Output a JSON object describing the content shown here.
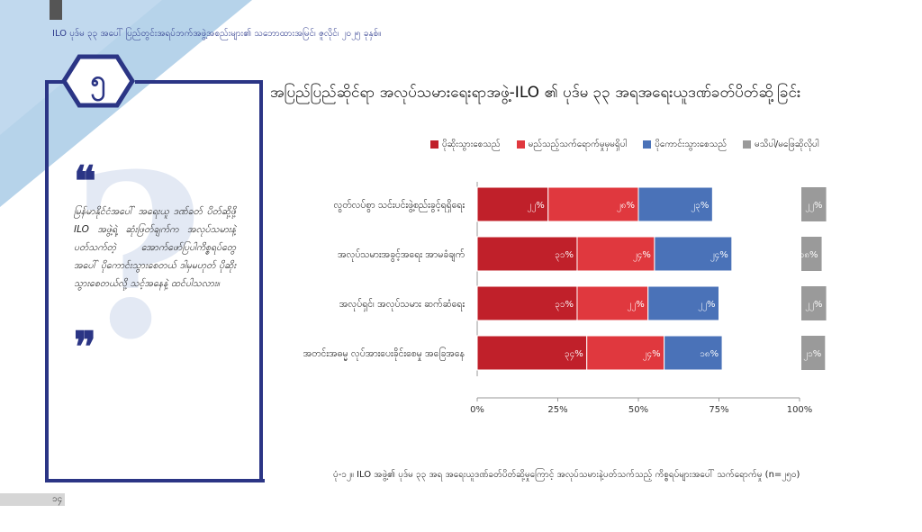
{
  "header": {
    "running_title": "ILO ပုဒ်မ ၃၃ အပေါ် ပြည်တွင်းအရပ်ဘက်အဖွဲ့အစည်းများ၏ သဘောထားအမြင်၊ ဇူလိုင်၊ ၂၀၂၅ ခုနှစ်။"
  },
  "section": {
    "number": "၅"
  },
  "page": {
    "number": "၁၄"
  },
  "quote": {
    "open_mark": "❝",
    "close_mark": "❞",
    "text": "မြန်မာနိုင်ငံအပေါ် အရေးယူ ဒဏ်ခတ် ပိတ်ဆို့ဖို့ ILO အဖွဲ့ရဲ့ ဆုံးဖြတ်ချက်က အလုပ်သမားနဲ့ပတ်သက်တဲ့ အောက်ဖော်ပြပါကိစ္စရပ်တွေအပေါ် ပိုကောင်းသွားစေတယ် ဒါမှမဟုတ် ပိုဆိုးသွားစေတယ်လို့ သင့်အနေနဲ့ ထင်ပါသလား။"
  },
  "caption": "ပုံ-၁၂။ ILO အဖွဲ့၏ ပုဒ်မ ၃၃ အရ အရေးယူဒဏ်ခတ်ပိတ်ဆို့မှုကြောင့် အလုပ်သမားနဲ့ပတ်သက်သည့် ကိစ္စရပ်များအပေါ် သက်ရောက်မှု (n=၂၅၀)",
  "colors": {
    "worse": "#c0202a",
    "no_effect": "#e0383e",
    "better": "#4a72b8",
    "unknown": "#9a9a9a",
    "navy": "#2b3585",
    "light_blue": "#a9cbe6"
  },
  "chart_data": {
    "type": "bar",
    "orientation": "horizontal",
    "stacked": true,
    "title": "အပြည်ပြည်ဆိုင်ရာ အလုပ်သမားရေးရာအဖွဲ့-ILO ၏ ပုဒ်မ ၃၃ အရအရေးယူဒဏ်ခတ်ပိတ်ဆို့ခြင်း",
    "categories": [
      "လွတ်လပ်စွာ သင်းပင်းဖွဲ့စည်းခွင့်ရရှိရေး",
      "အလုပ်သမားအခွင့်အရေး အာမခံချက်",
      "အလုပ်ရှင်၊ အလုပ်သမား ဆက်ဆံရေး",
      "အတင်းအဓမ္မ လုပ်အားပေးခိုင်းစေမှု အခြေအနေ"
    ],
    "series": [
      {
        "name": "ပိုဆိုးသွားစေသည်",
        "values": [
          22,
          31,
          31,
          34
        ],
        "labels": [
          "၂၂%",
          "၃၁%",
          "၃၁%",
          "၃၄%"
        ]
      },
      {
        "name": "မည်သည့်သက်ရောက်မှုမှမရှိပါ",
        "values": [
          28,
          24,
          22,
          24
        ],
        "labels": [
          "၂၈%",
          "၂၄%",
          "၂၂%",
          "၂၄%"
        ]
      },
      {
        "name": "ပိုကောင်းသွားစေသည်",
        "values": [
          23,
          24,
          22,
          18
        ],
        "labels": [
          "၂၃%",
          "၂၄%",
          "၂၂%",
          "၁၈%"
        ]
      }
    ],
    "separate_series": {
      "name": "မသိပါ/မဖြေဆိုလိုပါ",
      "values": [
        22,
        18,
        22,
        21
      ],
      "labels": [
        "၂၂%",
        "၁၈%",
        "၂၂%",
        "၂၁%"
      ]
    },
    "xlim": [
      0,
      100
    ],
    "xticks": [
      0,
      25,
      50,
      75,
      100
    ],
    "xtick_labels": [
      "0%",
      "25%",
      "50%",
      "75%",
      "100%"
    ],
    "legend": "top",
    "grid": false
  }
}
